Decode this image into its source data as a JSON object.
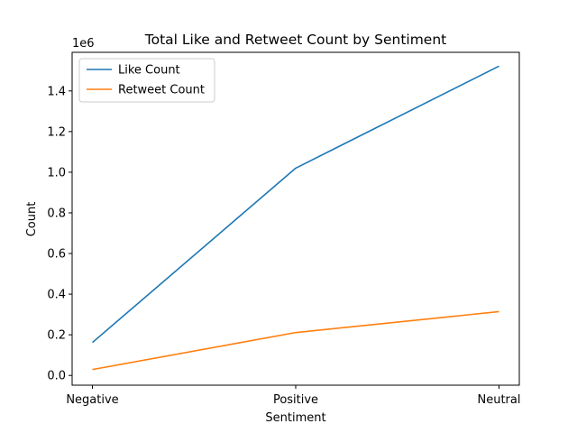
{
  "chart_data": {
    "type": "line",
    "title": "Total Like and Retweet Count by Sentiment",
    "xlabel": "Sentiment",
    "ylabel": "Count",
    "y_offset_label": "1e6",
    "categories": [
      "Negative",
      "Positive",
      "Neutral"
    ],
    "series": [
      {
        "name": "Like Count",
        "color": "#1f77b4",
        "values": [
          162000,
          1020000,
          1522000
        ]
      },
      {
        "name": "Retweet Count",
        "color": "#ff7f0e",
        "values": [
          29000,
          211000,
          314000
        ]
      }
    ],
    "ylim": [
      -48000,
      1590000
    ],
    "yticks": [
      0,
      200000,
      400000,
      600000,
      800000,
      1000000,
      1200000,
      1400000
    ],
    "ytick_labels": [
      "0.0",
      "0.2",
      "0.4",
      "0.6",
      "0.8",
      "1.0",
      "1.2",
      "1.4"
    ],
    "grid": false,
    "legend_position": "top-left"
  }
}
